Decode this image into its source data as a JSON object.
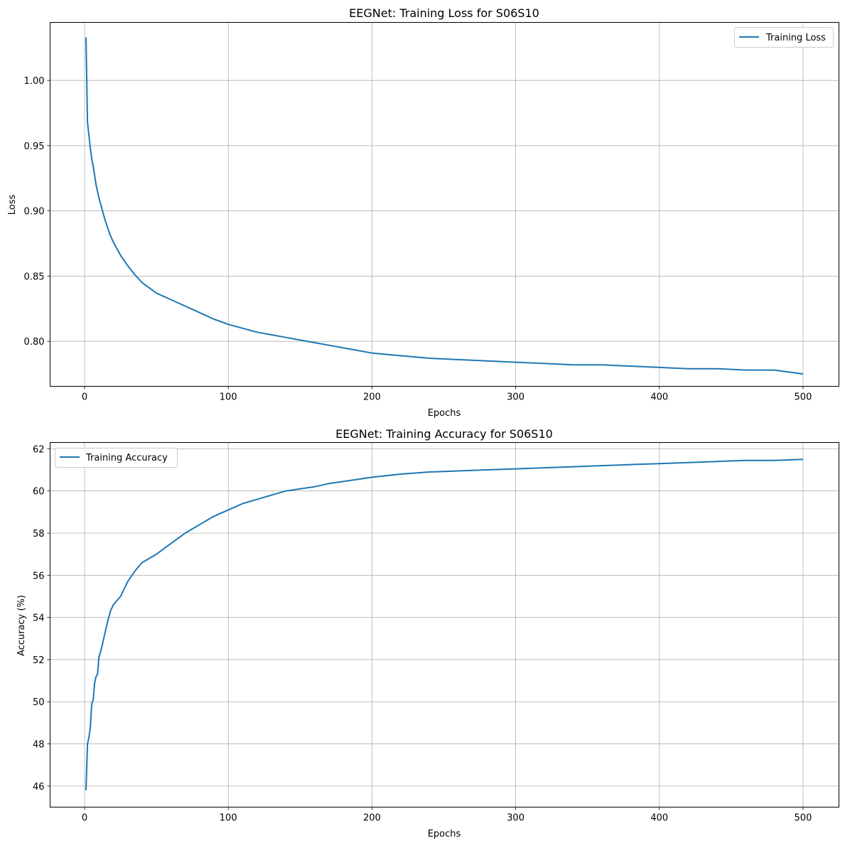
{
  "chart_data": [
    {
      "type": "line",
      "title": "EEGNet: Training Loss for S06S10",
      "xlabel": "Epochs",
      "ylabel": "Loss",
      "xlim": [
        -24,
        525
      ],
      "ylim": [
        0.7655,
        1.0445
      ],
      "xticks": [
        0,
        100,
        200,
        300,
        400,
        500
      ],
      "yticks": [
        0.8,
        0.85,
        0.9,
        0.95,
        1.0
      ],
      "xtick_labels": [
        "0",
        "100",
        "200",
        "300",
        "400",
        "500"
      ],
      "ytick_labels": [
        "0.80",
        "0.85",
        "0.90",
        "0.95",
        "1.00"
      ],
      "grid": true,
      "legend_position": "top-right",
      "color": "#1f77b4",
      "series": [
        {
          "name": "Training Loss",
          "x": [
            1,
            2,
            3,
            4,
            5,
            6,
            7,
            8,
            10,
            12,
            14,
            16,
            18,
            20,
            25,
            30,
            35,
            40,
            50,
            60,
            70,
            80,
            90,
            100,
            110,
            120,
            130,
            140,
            150,
            160,
            170,
            180,
            190,
            200,
            220,
            240,
            260,
            280,
            300,
            320,
            340,
            360,
            380,
            400,
            420,
            440,
            460,
            480,
            500
          ],
          "y": [
            1.033,
            0.968,
            0.958,
            0.948,
            0.94,
            0.934,
            0.927,
            0.92,
            0.91,
            0.902,
            0.894,
            0.887,
            0.881,
            0.876,
            0.866,
            0.858,
            0.851,
            0.845,
            0.837,
            0.832,
            0.827,
            0.822,
            0.817,
            0.813,
            0.81,
            0.807,
            0.805,
            0.803,
            0.801,
            0.799,
            0.797,
            0.795,
            0.793,
            0.791,
            0.789,
            0.787,
            0.786,
            0.785,
            0.784,
            0.783,
            0.782,
            0.782,
            0.781,
            0.78,
            0.779,
            0.779,
            0.778,
            0.778,
            0.775
          ]
        }
      ]
    },
    {
      "type": "line",
      "title": "EEGNet: Training Accuracy for S06S10",
      "xlabel": "Epochs",
      "ylabel": "Accuracy (%)",
      "xlim": [
        -24,
        525
      ],
      "ylim": [
        45.0,
        62.3
      ],
      "xticks": [
        0,
        100,
        200,
        300,
        400,
        500
      ],
      "yticks": [
        46,
        48,
        50,
        52,
        54,
        56,
        58,
        60,
        62
      ],
      "xtick_labels": [
        "0",
        "100",
        "200",
        "300",
        "400",
        "500"
      ],
      "ytick_labels": [
        "46",
        "48",
        "50",
        "52",
        "54",
        "56",
        "58",
        "60",
        "62"
      ],
      "grid": true,
      "legend_position": "top-left",
      "color": "#1f77b4",
      "series": [
        {
          "name": "Training Accuracy",
          "x": [
            1,
            2,
            3,
            4,
            5,
            6,
            7,
            8,
            9,
            10,
            12,
            14,
            16,
            18,
            20,
            25,
            30,
            35,
            40,
            50,
            60,
            70,
            80,
            90,
            100,
            110,
            120,
            130,
            140,
            150,
            160,
            170,
            180,
            190,
            200,
            220,
            240,
            260,
            280,
            300,
            320,
            340,
            360,
            380,
            400,
            420,
            440,
            460,
            480,
            500
          ],
          "y": [
            45.8,
            48.0,
            48.3,
            48.8,
            49.9,
            50.1,
            50.9,
            51.2,
            51.3,
            52.1,
            52.6,
            53.2,
            53.8,
            54.3,
            54.6,
            55.0,
            55.7,
            56.2,
            56.6,
            57.0,
            57.5,
            58.0,
            58.4,
            58.8,
            59.1,
            59.4,
            59.6,
            59.8,
            60.0,
            60.1,
            60.2,
            60.35,
            60.45,
            60.55,
            60.65,
            60.8,
            60.9,
            60.95,
            61.0,
            61.05,
            61.1,
            61.15,
            61.2,
            61.25,
            61.3,
            61.35,
            61.4,
            61.45,
            61.45,
            61.5
          ]
        }
      ]
    }
  ]
}
